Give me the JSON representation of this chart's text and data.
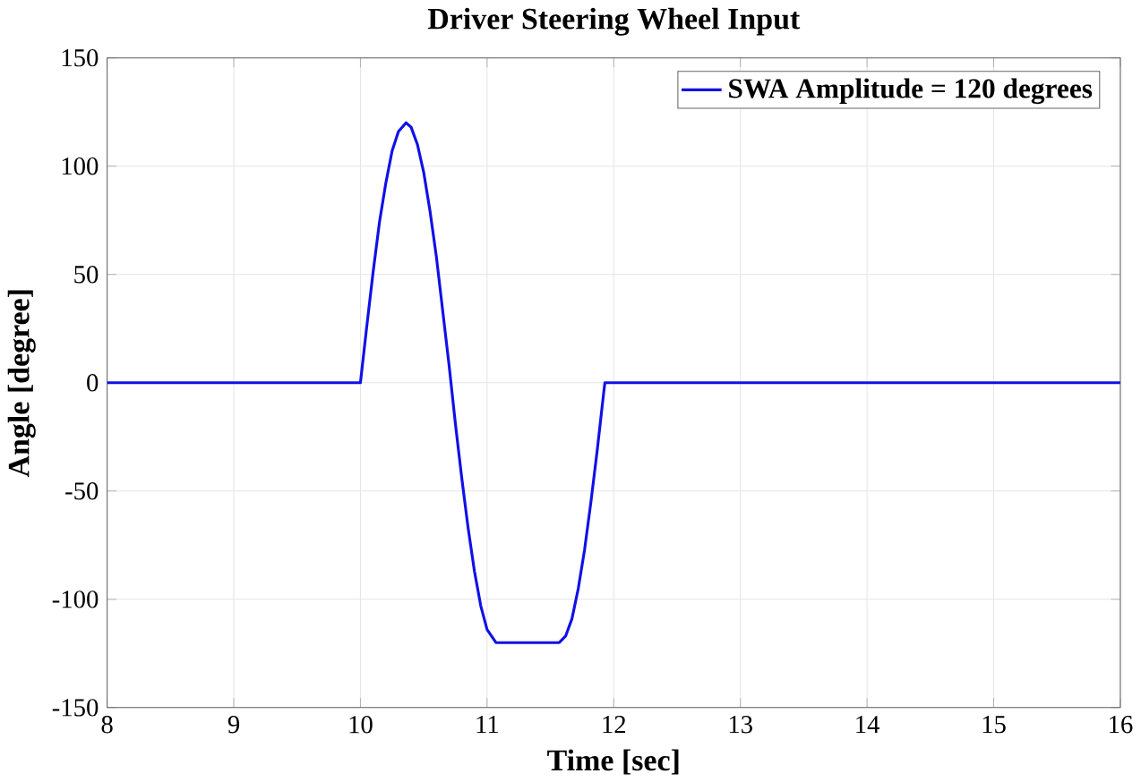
{
  "chart_data": {
    "type": "line",
    "title": "Driver Steering Wheel Input",
    "xlabel": "Time [sec]",
    "ylabel": "Angle [degree]",
    "xlim": [
      8,
      16
    ],
    "xticks": [
      8,
      9,
      10,
      11,
      12,
      13,
      14,
      15,
      16
    ],
    "ylim": [
      -150,
      150
    ],
    "yticks": [
      -150,
      -100,
      -50,
      0,
      50,
      100,
      150
    ],
    "grid": true,
    "legend": "top right",
    "marker": "none",
    "line_style": "solid",
    "series": [
      {
        "name": "SWA Amplitude = 120 degrees",
        "color": "#1010e8",
        "x": [
          8,
          10,
          10.05,
          10.1,
          10.15,
          10.2,
          10.25,
          10.3,
          10.36,
          10.4,
          10.45,
          10.5,
          10.55,
          10.6,
          10.65,
          10.7,
          10.75,
          10.8,
          10.85,
          10.9,
          10.95,
          11.0,
          11.07,
          11.57,
          11.62,
          11.67,
          11.72,
          11.77,
          11.82,
          11.87,
          11.92,
          11.93,
          16
        ],
        "values": [
          0,
          0,
          26,
          51,
          74,
          92,
          107,
          116,
          120,
          118,
          110,
          97,
          79,
          58,
          33,
          8,
          -19,
          -44,
          -67,
          -87,
          -103,
          -114,
          -120,
          -120,
          -117,
          -109,
          -95,
          -77,
          -55,
          -31,
          -5,
          0,
          0
        ]
      }
    ]
  }
}
